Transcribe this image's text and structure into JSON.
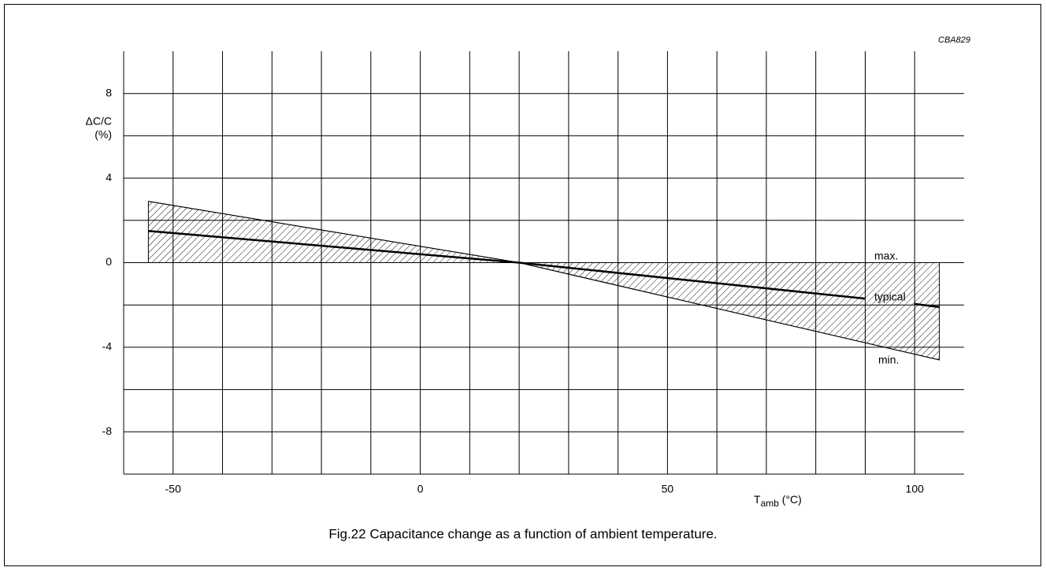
{
  "chart_data": {
    "type": "line",
    "code": "CBA829",
    "ylabel": [
      "ΔC/C",
      "(%)"
    ],
    "xlabel": {
      "main": "T",
      "sub": "amb",
      "unit": " (°C)"
    },
    "caption": "Fig.22  Capacitance change as a function of ambient temperature.",
    "xlim": [
      -60,
      110
    ],
    "ylim": [
      -10,
      10
    ],
    "xticks": [
      -50,
      0,
      50,
      100
    ],
    "yticks": [
      -8,
      -4,
      0,
      4,
      8
    ],
    "xgrid": [
      -50,
      -40,
      -30,
      -20,
      -10,
      0,
      10,
      20,
      30,
      40,
      50,
      60,
      70,
      80,
      90,
      100
    ],
    "ygrid": [
      -8,
      -6,
      -4,
      -2,
      0,
      2,
      4,
      6,
      8
    ],
    "grid": true,
    "hatched_band": true,
    "series": [
      {
        "name": "max.",
        "color": "#000000",
        "x": [
          -55,
          20,
          105
        ],
        "values": [
          2.9,
          0,
          0
        ]
      },
      {
        "name": "min.",
        "color": "#000000",
        "x": [
          -55,
          20,
          105
        ],
        "values": [
          0,
          0,
          -4.6
        ]
      },
      {
        "name": "typical",
        "color": "#000000",
        "x": [
          -55,
          20,
          90,
          95,
          100,
          105
        ],
        "values": [
          1.5,
          0,
          -1.7,
          null,
          -1.95,
          -2.1
        ]
      }
    ]
  }
}
